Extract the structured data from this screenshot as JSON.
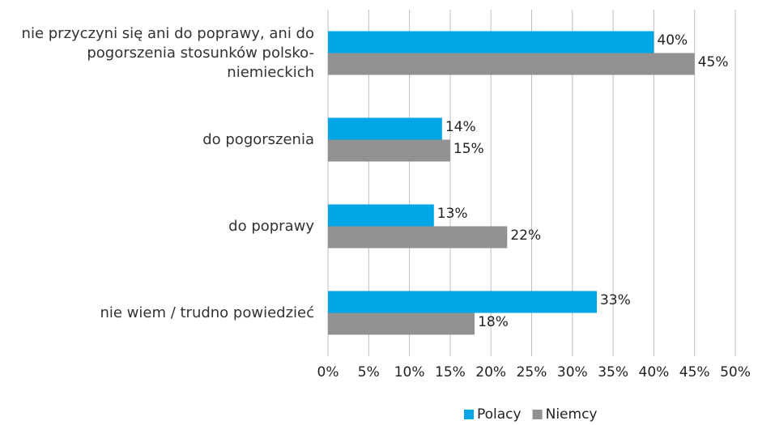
{
  "chart_data": {
    "type": "hbar",
    "categories": [
      "nie przyczyni się ani do poprawy, ani do pogorszenia stosunków polsko-niemieckich",
      "do pogorszenia",
      "do poprawy",
      "nie wiem / trudno powiedzieć"
    ],
    "series": [
      {
        "name": "Polacy",
        "color": "#00a6e6",
        "values": [
          40,
          14,
          13,
          33
        ],
        "value_labels": [
          "40%",
          "14%",
          "13%",
          "33%"
        ]
      },
      {
        "name": "Niemcy",
        "color": "#919191",
        "values": [
          45,
          15,
          22,
          18
        ],
        "value_labels": [
          "45%",
          "15%",
          "22%",
          "18%"
        ]
      }
    ],
    "xlim": [
      0,
      50
    ],
    "xticks": [
      {
        "value": 0,
        "label": "0%"
      },
      {
        "value": 5,
        "label": "5%"
      },
      {
        "value": 10,
        "label": "10%"
      },
      {
        "value": 15,
        "label": "15%"
      },
      {
        "value": 20,
        "label": "20%"
      },
      {
        "value": 25,
        "label": "25%"
      },
      {
        "value": 30,
        "label": "30%"
      },
      {
        "value": 35,
        "label": "35%"
      },
      {
        "value": 40,
        "label": "40%"
      },
      {
        "value": 45,
        "label": "45%"
      },
      {
        "value": 50,
        "label": "50%"
      }
    ],
    "grid": true,
    "legend": "bottom"
  }
}
